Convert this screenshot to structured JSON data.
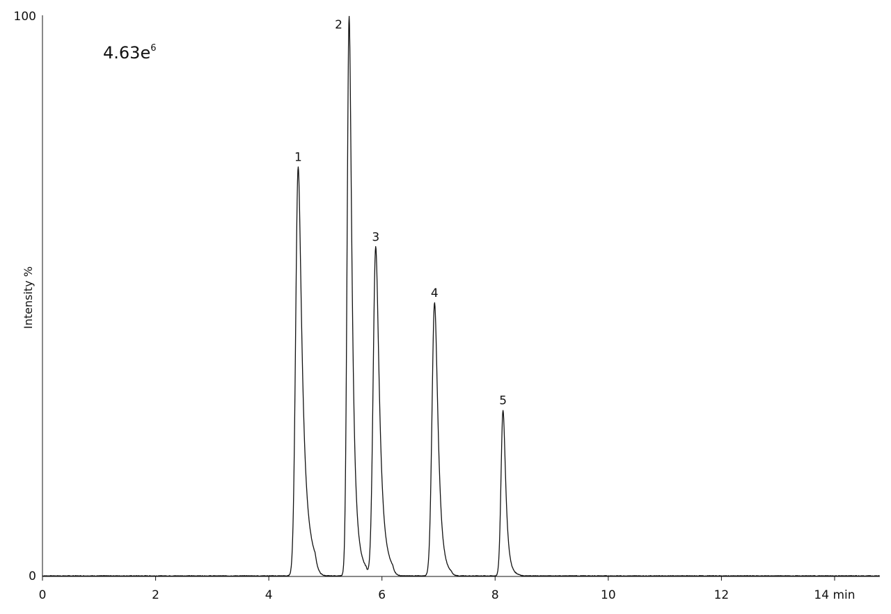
{
  "chart_data": {
    "type": "line",
    "title": "",
    "xlabel": "",
    "ylabel": "Intensity %",
    "x_unit": "min",
    "xlim": [
      0,
      14.8
    ],
    "ylim": [
      0,
      100
    ],
    "x_ticks": [
      "0",
      "2",
      "4",
      "6",
      "8",
      "10",
      "12",
      "14"
    ],
    "y_ticks": [
      "0",
      "100"
    ],
    "scale_annotation": {
      "mantissa": "4.63e",
      "exponent": "6"
    },
    "grid": false,
    "legend": "none",
    "line_color": "#111111",
    "baseline": 0.1,
    "peaks": [
      {
        "label": "1",
        "rt": 4.52,
        "height": 73.1,
        "width": 0.045,
        "tail": 0.08
      },
      {
        "label": "2",
        "rt": 5.42,
        "height": 100.0,
        "width": 0.035,
        "tail": 0.07
      },
      {
        "label": "3",
        "rt": 5.89,
        "height": 58.8,
        "width": 0.045,
        "tail": 0.07
      },
      {
        "label": "4",
        "rt": 6.93,
        "height": 48.8,
        "width": 0.045,
        "tail": 0.06
      },
      {
        "label": "5",
        "rt": 8.14,
        "height": 29.6,
        "width": 0.035,
        "tail": 0.06
      }
    ]
  }
}
